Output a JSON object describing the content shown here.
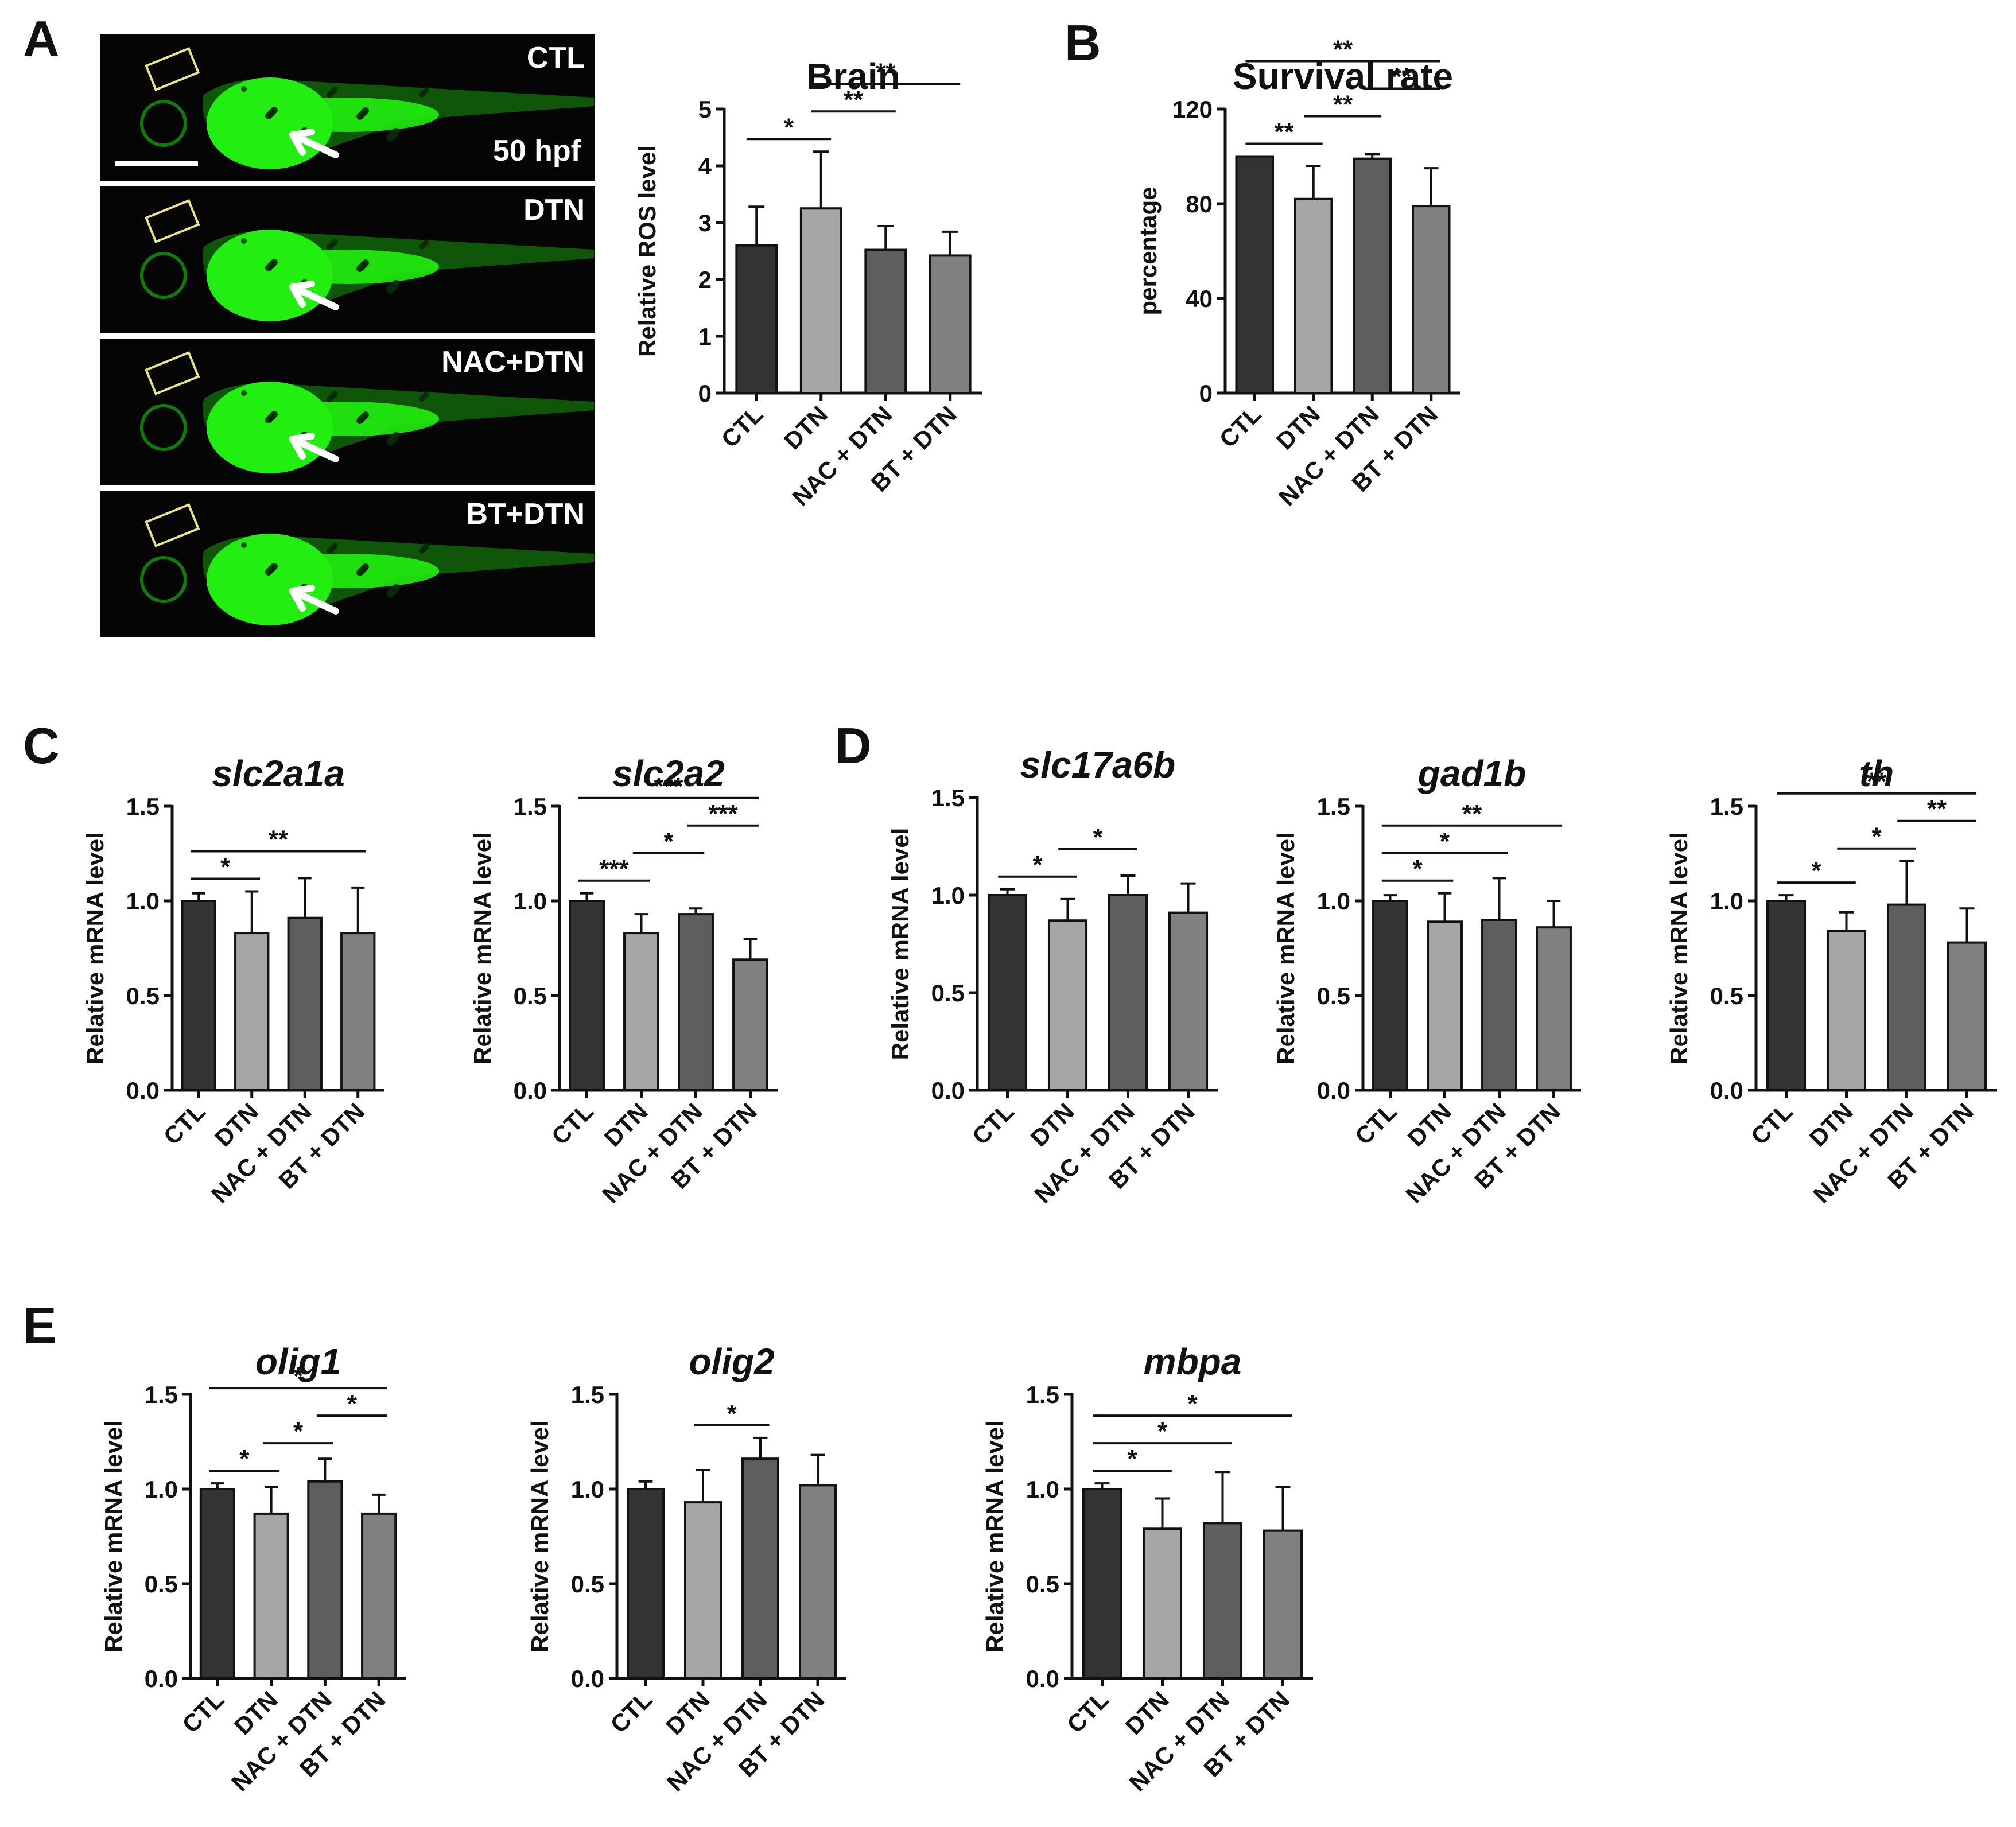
{
  "panel_labels": [
    "A",
    "B",
    "C",
    "D",
    "E"
  ],
  "images": [
    {
      "condition": "CTL",
      "timepoint": "50 hpf"
    },
    {
      "condition": "DTN"
    },
    {
      "condition": "NAC+DTN"
    },
    {
      "condition": "BT+DTN"
    }
  ],
  "colors": {
    "bars": [
      "#333333",
      "#a6a6a6",
      "#5e5e5e",
      "#808080"
    ],
    "fluorescence": "#22ee11",
    "image_bg": "#050505"
  },
  "chart_data": [
    {
      "type": "bar",
      "panel": "A",
      "title": "Brain",
      "title_italic": false,
      "ylabel": "Relative ROS level",
      "categories": [
        "CTL",
        "DTN",
        "NAC + DTN",
        "BT + DTN"
      ],
      "values": [
        2.6,
        3.25,
        2.52,
        2.42
      ],
      "errors": [
        0.68,
        1.0,
        0.42,
        0.42
      ],
      "ylim": [
        0,
        5
      ],
      "yticks": [
        "0",
        "1",
        "2",
        "3",
        "4",
        "5"
      ],
      "significance": [
        {
          "from": 0,
          "to": 1,
          "label": "*"
        },
        {
          "from": 1,
          "to": 2,
          "label": "**"
        },
        {
          "from": 1,
          "to": 3,
          "label": "**"
        }
      ]
    },
    {
      "type": "bar",
      "panel": "B",
      "title": "Survival rate",
      "title_italic": false,
      "ylabel": "percentage",
      "categories": [
        "CTL",
        "DTN",
        "NAC + DTN",
        "BT + DTN"
      ],
      "values": [
        100,
        82,
        99,
        79
      ],
      "errors": [
        0,
        14,
        2,
        16
      ],
      "ylim": [
        0,
        120
      ],
      "yticks": [
        "0",
        "40",
        "80",
        "120"
      ],
      "significance": [
        {
          "from": 0,
          "to": 1,
          "label": "**"
        },
        {
          "from": 1,
          "to": 2,
          "label": "**"
        },
        {
          "from": 2,
          "to": 3,
          "label": "**"
        },
        {
          "from": 0,
          "to": 3,
          "label": "**"
        }
      ]
    },
    {
      "type": "bar",
      "panel": "C",
      "title": "slc2a1a",
      "title_italic": true,
      "ylabel": "Relative mRNA level",
      "categories": [
        "CTL",
        "DTN",
        "NAC + DTN",
        "BT + DTN"
      ],
      "values": [
        1.0,
        0.83,
        0.91,
        0.83
      ],
      "errors": [
        0.04,
        0.22,
        0.21,
        0.24
      ],
      "ylim": [
        0,
        1.5
      ],
      "yticks": [
        "0.0",
        "0.5",
        "1.0",
        "1.5"
      ],
      "significance": [
        {
          "from": 0,
          "to": 1,
          "label": "*"
        },
        {
          "from": 0,
          "to": 3,
          "label": "**"
        }
      ]
    },
    {
      "type": "bar",
      "panel": "C",
      "title": "slc2a2",
      "title_italic": true,
      "ylabel": "Relative mRNA level",
      "categories": [
        "CTL",
        "DTN",
        "NAC + DTN",
        "BT + DTN"
      ],
      "values": [
        1.0,
        0.83,
        0.93,
        0.69
      ],
      "errors": [
        0.04,
        0.1,
        0.03,
        0.11
      ],
      "ylim": [
        0,
        1.5
      ],
      "yticks": [
        "0.0",
        "0.5",
        "1.0",
        "1.5"
      ],
      "significance": [
        {
          "from": 0,
          "to": 1,
          "label": "***"
        },
        {
          "from": 1,
          "to": 2,
          "label": "*"
        },
        {
          "from": 2,
          "to": 3,
          "label": "***"
        },
        {
          "from": 0,
          "to": 3,
          "label": "***"
        }
      ]
    },
    {
      "type": "bar",
      "panel": "D",
      "title": "slc17a6b",
      "title_italic": true,
      "ylabel": "Relative mRNA level",
      "categories": [
        "CTL",
        "DTN",
        "NAC + DTN",
        "BT + DTN"
      ],
      "values": [
        1.0,
        0.87,
        1.0,
        0.91
      ],
      "errors": [
        0.03,
        0.11,
        0.1,
        0.15
      ],
      "ylim": [
        0,
        1.5
      ],
      "yticks": [
        "0.0",
        "0.5",
        "1.0",
        "1.5"
      ],
      "significance": [
        {
          "from": 0,
          "to": 1,
          "label": "*"
        },
        {
          "from": 1,
          "to": 2,
          "label": "*"
        }
      ]
    },
    {
      "type": "bar",
      "panel": "D",
      "title": "gad1b",
      "title_italic": true,
      "ylabel": "Relative mRNA level",
      "categories": [
        "CTL",
        "DTN",
        "NAC + DTN",
        "BT + DTN"
      ],
      "values": [
        1.0,
        0.89,
        0.9,
        0.86
      ],
      "errors": [
        0.03,
        0.15,
        0.22,
        0.14
      ],
      "ylim": [
        0,
        1.5
      ],
      "yticks": [
        "0.0",
        "0.5",
        "1.0",
        "1.5"
      ],
      "significance": [
        {
          "from": 0,
          "to": 1,
          "label": "*"
        },
        {
          "from": 0,
          "to": 2,
          "label": "*"
        },
        {
          "from": 0,
          "to": 3,
          "label": "**"
        }
      ]
    },
    {
      "type": "bar",
      "panel": "D",
      "title": "th",
      "title_italic": true,
      "ylabel": "Relative mRNA level",
      "categories": [
        "CTL",
        "DTN",
        "NAC + DTN",
        "BT + DTN"
      ],
      "values": [
        1.0,
        0.84,
        0.98,
        0.78
      ],
      "errors": [
        0.03,
        0.1,
        0.23,
        0.18
      ],
      "ylim": [
        0,
        1.5
      ],
      "yticks": [
        "0.0",
        "0.5",
        "1.0",
        "1.5"
      ],
      "significance": [
        {
          "from": 0,
          "to": 1,
          "label": "*"
        },
        {
          "from": 1,
          "to": 2,
          "label": "*"
        },
        {
          "from": 2,
          "to": 3,
          "label": "**"
        },
        {
          "from": 0,
          "to": 3,
          "label": "**"
        }
      ]
    },
    {
      "type": "bar",
      "panel": "E",
      "title": "olig1",
      "title_italic": true,
      "ylabel": "Relative mRNA level",
      "categories": [
        "CTL",
        "DTN",
        "NAC + DTN",
        "BT + DTN"
      ],
      "values": [
        1.0,
        0.87,
        1.04,
        0.87
      ],
      "errors": [
        0.03,
        0.14,
        0.12,
        0.1
      ],
      "ylim": [
        0,
        1.5
      ],
      "yticks": [
        "0.0",
        "0.5",
        "1.0",
        "1.5"
      ],
      "significance": [
        {
          "from": 0,
          "to": 1,
          "label": "*"
        },
        {
          "from": 1,
          "to": 2,
          "label": "*"
        },
        {
          "from": 2,
          "to": 3,
          "label": "*"
        },
        {
          "from": 0,
          "to": 3,
          "label": "*"
        }
      ]
    },
    {
      "type": "bar",
      "panel": "E",
      "title": "olig2",
      "title_italic": true,
      "ylabel": "Relative mRNA level",
      "categories": [
        "CTL",
        "DTN",
        "NAC + DTN",
        "BT + DTN"
      ],
      "values": [
        1.0,
        0.93,
        1.16,
        1.02
      ],
      "errors": [
        0.04,
        0.17,
        0.11,
        0.16
      ],
      "ylim": [
        0,
        1.5
      ],
      "yticks": [
        "0.0",
        "0.5",
        "1.0",
        "1.5"
      ],
      "significance": [
        {
          "from": 1,
          "to": 2,
          "label": "*"
        }
      ]
    },
    {
      "type": "bar",
      "panel": "E",
      "title": "mbpa",
      "title_italic": true,
      "ylabel": "Relative mRNA level",
      "categories": [
        "CTL",
        "DTN",
        "NAC + DTN",
        "BT + DTN"
      ],
      "values": [
        1.0,
        0.79,
        0.82,
        0.78
      ],
      "errors": [
        0.03,
        0.16,
        0.27,
        0.23
      ],
      "ylim": [
        0,
        1.5
      ],
      "yticks": [
        "0.0",
        "0.5",
        "1.0",
        "1.5"
      ],
      "significance": [
        {
          "from": 0,
          "to": 1,
          "label": "*"
        },
        {
          "from": 0,
          "to": 2,
          "label": "*"
        },
        {
          "from": 0,
          "to": 3,
          "label": "*"
        }
      ]
    }
  ]
}
